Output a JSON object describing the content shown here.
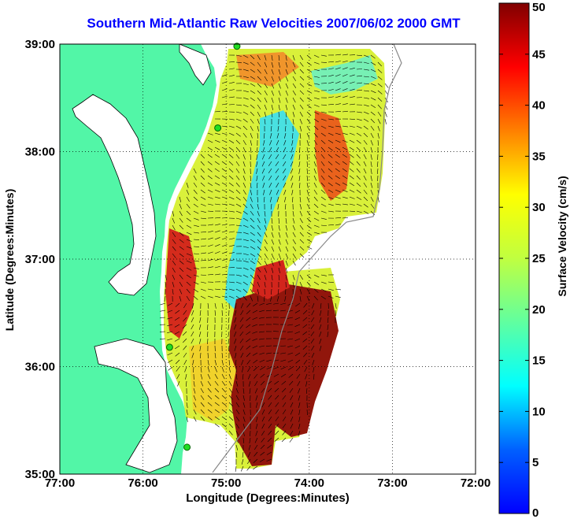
{
  "title": "Southern Mid-Atlantic Raw Velocities 2007/06/02 2000 GMT",
  "x_axis": {
    "label": "Longitude (Degrees:Minutes)",
    "ticks": [
      "77:00",
      "76:00",
      "75:00",
      "74:00",
      "73:00",
      "72:00"
    ],
    "range": [
      -77,
      -72
    ]
  },
  "y_axis": {
    "label": "Latitude (Degrees:Minutes)",
    "ticks": [
      "39:00",
      "38:00",
      "37:00",
      "36:00",
      "35:00"
    ],
    "range": [
      35,
      39
    ]
  },
  "colorbar": {
    "label": "Surface Velocity (cm/s)",
    "ticks": [
      "50",
      "45",
      "40",
      "35",
      "30",
      "25",
      "20",
      "15",
      "10",
      "5",
      "0"
    ],
    "range": [
      0,
      50
    ]
  },
  "colors": {
    "land": "#52f6a7",
    "water": "#ffffff",
    "title": "#0000ff",
    "station": "#22dd22"
  },
  "grid": true,
  "stations": [
    {
      "lon": -74.87,
      "lat": 38.98
    },
    {
      "lon": -75.1,
      "lat": 38.22
    },
    {
      "lon": -75.68,
      "lat": 36.18
    },
    {
      "lon": -75.47,
      "lat": 35.25
    }
  ]
}
